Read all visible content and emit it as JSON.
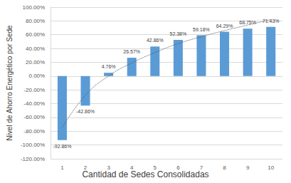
{
  "chart_data": {
    "type": "bar",
    "y_label": "Nivel de Ahorro Energético por Sede",
    "x_label": "Cantidad de Sedes Consolidadas",
    "categories": [
      "1",
      "2",
      "3",
      "4",
      "5",
      "6",
      "7",
      "8",
      "9",
      "10"
    ],
    "series": [
      {
        "type": "bar",
        "color": "#5b9bd5",
        "values": [
          -92.86,
          -42.86,
          4.76,
          26.57,
          42.86,
          52.38,
          59.18,
          64.29,
          68.75,
          71.43
        ],
        "value_labels": [
          "-92.86%",
          "-42.86%",
          "4.76%",
          "26.57%",
          "42.86%",
          "52.38%",
          "59.18%",
          "64.29%",
          "68.75%",
          "71.43%"
        ]
      },
      {
        "type": "line",
        "color": "#595959",
        "line_style": "dotted",
        "values": [
          -75,
          -28,
          0,
          19,
          34,
          47,
          57,
          66,
          74,
          82
        ]
      }
    ],
    "ylim": [
      -120,
      100
    ],
    "yticks": [
      {
        "value": -120,
        "label": "-120.00%"
      },
      {
        "value": -100,
        "label": "-100.00%"
      },
      {
        "value": -80,
        "label": "-80.00%"
      },
      {
        "value": -60,
        "label": "-60.00%"
      },
      {
        "value": -40,
        "label": "-40.00%"
      },
      {
        "value": -20,
        "label": "-20.00%"
      },
      {
        "value": 0,
        "label": "0.00%"
      },
      {
        "value": 20,
        "label": "20.00%"
      },
      {
        "value": 40,
        "label": "40.00%"
      },
      {
        "value": 60,
        "label": "60.00%"
      },
      {
        "value": 80,
        "label": "80.00%"
      },
      {
        "value": 100,
        "label": "100.00%"
      }
    ],
    "data_labels": true,
    "grid": true
  }
}
